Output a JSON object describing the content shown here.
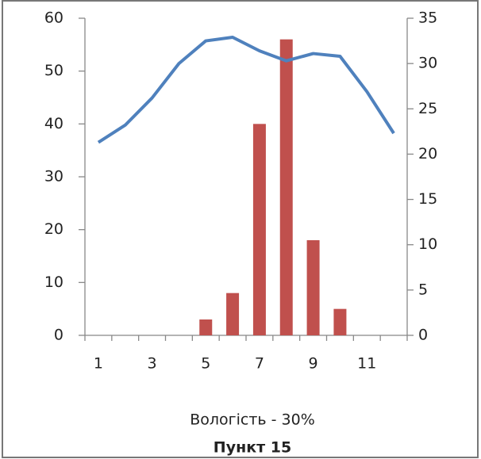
{
  "chart_data": {
    "type": "bar",
    "title": "Пункт 15",
    "xlabel": "Вологість - 30%",
    "categories": [
      1,
      null,
      3,
      null,
      5,
      null,
      7,
      null,
      9,
      null,
      11,
      null
    ],
    "series": [
      {
        "type": "bar",
        "color": "#c0504d",
        "values": [
          0,
          0,
          0,
          0,
          3,
          8,
          40,
          56,
          18,
          5,
          0,
          0
        ]
      },
      {
        "type": "line",
        "axis": "y2",
        "color": "#4f81bd",
        "values": [
          21.3,
          23.2,
          26.2,
          30.0,
          32.5,
          32.9,
          31.4,
          30.3,
          31.1,
          30.8,
          26.9,
          22.3
        ]
      }
    ],
    "ylim": [
      0,
      60
    ],
    "yticks": [
      0,
      10,
      20,
      30,
      40,
      50,
      60
    ],
    "y2lim": [
      0,
      35
    ],
    "y2ticks": [
      0,
      5,
      10,
      15,
      20,
      25,
      30,
      35
    ]
  }
}
